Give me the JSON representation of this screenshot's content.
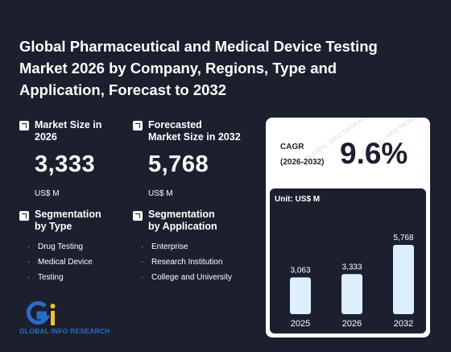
{
  "title": "Global Pharmaceutical and Medical Device Testing Market 2026 by Company, Regions, Type and Application, Forecast to 2032",
  "metrics": {
    "market_size": {
      "label_line1": "Market Size in",
      "label_line2": "2026",
      "value": "3,333",
      "unit": "US$ M"
    },
    "forecast": {
      "label_line1": "Forecasted",
      "label_line2": "Market Size in 2032",
      "value": "5,768",
      "unit": "US$ M"
    }
  },
  "segmentation_type": {
    "label_line1": "Segmentation",
    "label_line2": "by Type",
    "items": [
      "Drug Testing",
      "Medical Device",
      "Testing"
    ]
  },
  "segmentation_application": {
    "label_line1": "Segmentation",
    "label_line2": "by Application",
    "items": [
      "Enterprise",
      "Research Institution",
      "College and University"
    ]
  },
  "cagr": {
    "label_line1": "CAGR",
    "label_line2": "(2026-2032)",
    "value": "9.6%"
  },
  "logo": {
    "text": "GLOBAL INFO RESEARCH"
  },
  "watermark": "GLOBAL INFO RESEARCH",
  "colors": {
    "background": "#1c1f2e",
    "bar": "#ddeeff",
    "card": "#ffffff",
    "logo_blue": "#2a6cc8",
    "logo_yellow": "#f2c12e"
  },
  "chart_data": {
    "type": "bar",
    "unit_label": "Unit: US$ M",
    "categories": [
      "2025",
      "2026",
      "2032"
    ],
    "values": [
      3063,
      3333,
      5768
    ],
    "value_labels": [
      "3,063",
      "3,333",
      "5,768"
    ],
    "ylim": [
      0,
      5768
    ]
  }
}
